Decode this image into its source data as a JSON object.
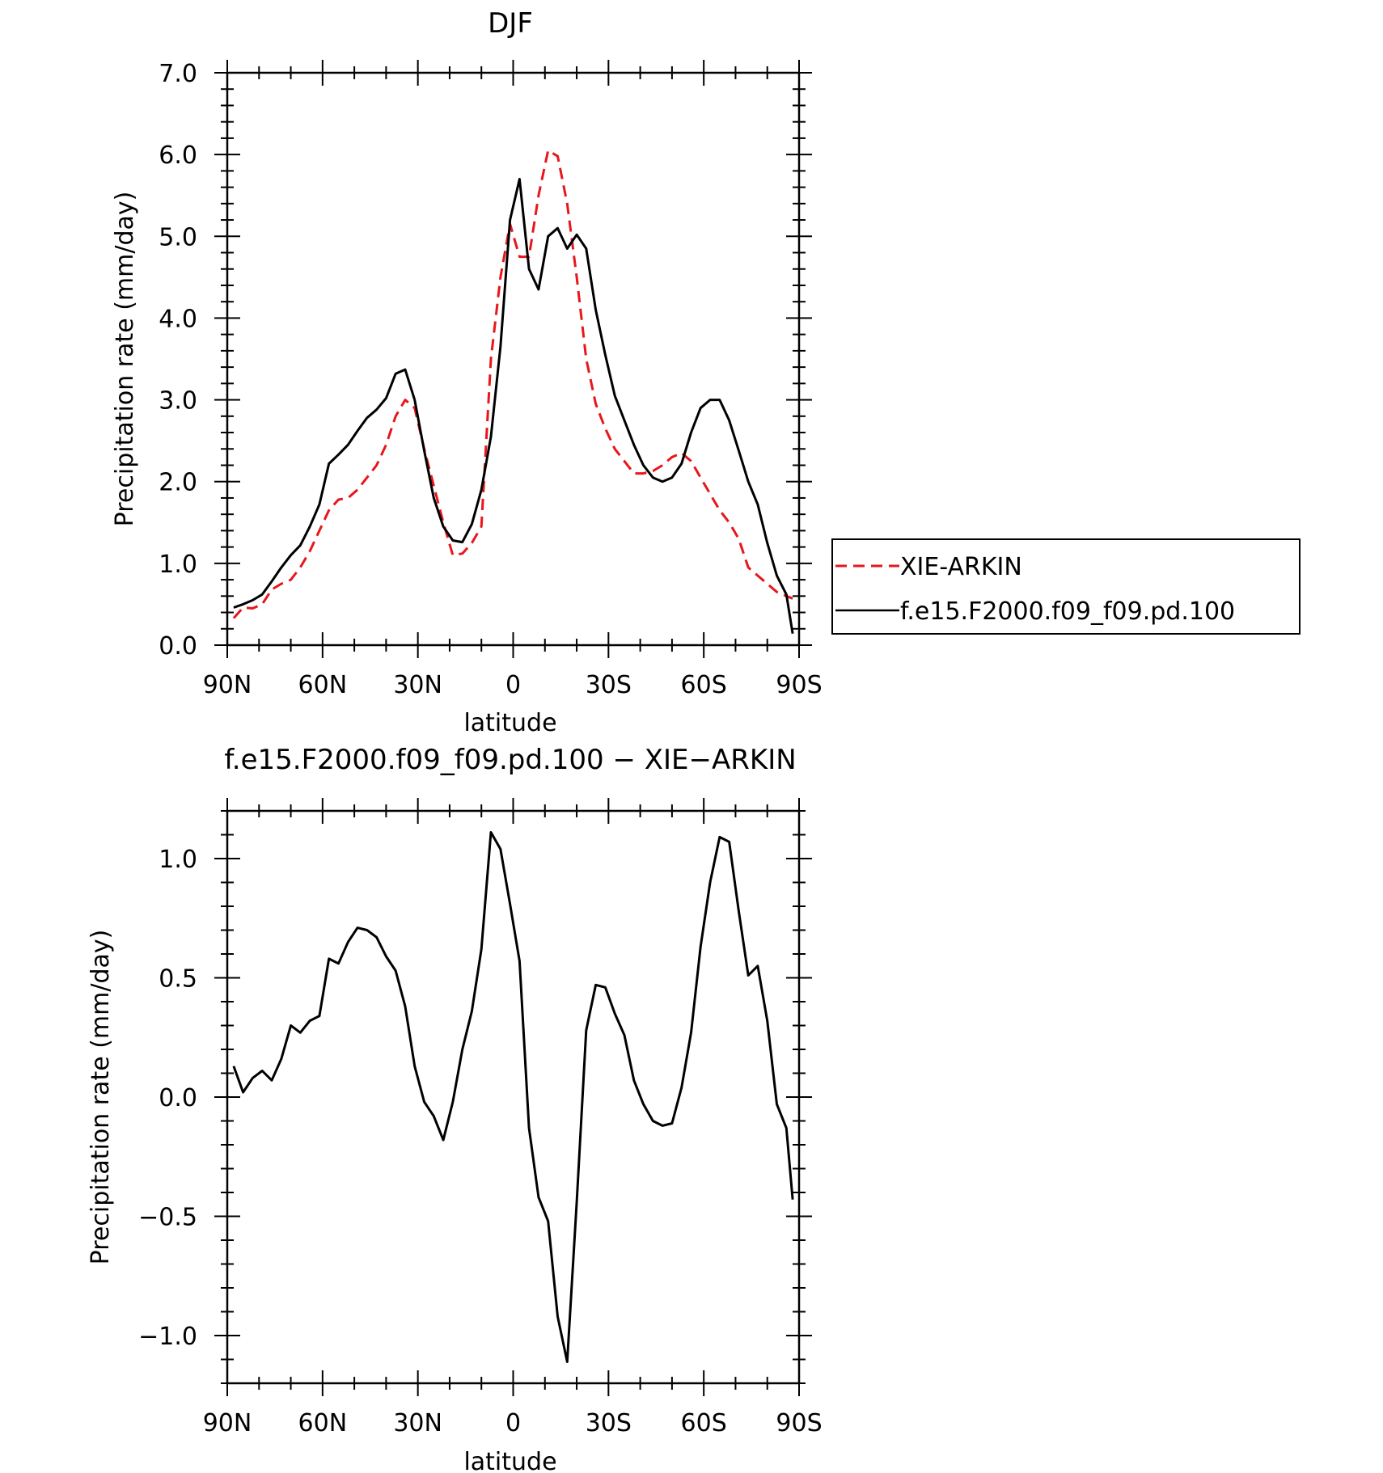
{
  "chart_data": [
    {
      "type": "line",
      "title": "DJF",
      "xlabel": "latitude",
      "ylabel": "Precipitation rate (mm/day)",
      "xlim": [
        90,
        -90
      ],
      "ylim": [
        0,
        7
      ],
      "x_ticks": [
        90,
        60,
        30,
        0,
        -30,
        -60,
        -90
      ],
      "x_tick_labels": [
        "90N",
        "60N",
        "30N",
        "0",
        "30S",
        "60S",
        "90S"
      ],
      "y_ticks": [
        0,
        1,
        2,
        3,
        4,
        5,
        6,
        7
      ],
      "y_tick_labels": [
        "0.0",
        "1.0",
        "2.0",
        "3.0",
        "4.0",
        "5.0",
        "6.0",
        "7.0"
      ],
      "legend_position": "right",
      "x": [
        88,
        85,
        82,
        79,
        76,
        73,
        70,
        67,
        64,
        61,
        58,
        55,
        52,
        49,
        46,
        43,
        40,
        37,
        34,
        31,
        28,
        25,
        22,
        19,
        16,
        13,
        10,
        7,
        4,
        1,
        -2,
        -5,
        -8,
        -11,
        -14,
        -17,
        -20,
        -23,
        -26,
        -29,
        -32,
        -35,
        -38,
        -41,
        -44,
        -47,
        -50,
        -53,
        -56,
        -59,
        -62,
        -65,
        -68,
        -71,
        -74,
        -77,
        -80,
        -83,
        -86,
        -88
      ],
      "series": [
        {
          "name": "XIE-ARKIN",
          "color": "#e8161b",
          "dash": true,
          "values": [
            0.33,
            0.46,
            0.45,
            0.5,
            0.68,
            0.75,
            0.8,
            0.95,
            1.15,
            1.4,
            1.65,
            1.78,
            1.8,
            1.9,
            2.05,
            2.2,
            2.45,
            2.8,
            3.0,
            2.9,
            2.4,
            1.95,
            1.5,
            1.1,
            1.12,
            1.25,
            1.45,
            3.5,
            4.5,
            5.15,
            4.75,
            4.75,
            5.5,
            6.05,
            5.98,
            5.4,
            4.5,
            3.5,
            2.95,
            2.65,
            2.4,
            2.25,
            2.1,
            2.1,
            2.13,
            2.2,
            2.3,
            2.35,
            2.25,
            2.05,
            1.85,
            1.65,
            1.5,
            1.3,
            0.95,
            0.85,
            0.75,
            0.65,
            0.6,
            0.57
          ]
        },
        {
          "name": "f.e15.F2000.f09_f09.pd.100",
          "color": "#000000",
          "dash": false,
          "values": [
            0.46,
            0.5,
            0.55,
            0.62,
            0.78,
            0.95,
            1.1,
            1.22,
            1.45,
            1.72,
            2.22,
            2.33,
            2.45,
            2.62,
            2.78,
            2.88,
            3.02,
            3.32,
            3.37,
            3.0,
            2.38,
            1.8,
            1.45,
            1.28,
            1.26,
            1.48,
            1.9,
            2.55,
            3.65,
            5.2,
            5.7,
            4.6,
            4.35,
            5.0,
            5.1,
            4.85,
            5.02,
            4.85,
            4.1,
            3.55,
            3.05,
            2.75,
            2.45,
            2.2,
            2.05,
            2.0,
            2.05,
            2.22,
            2.6,
            2.9,
            3.0,
            3.0,
            2.75,
            2.38,
            2.0,
            1.72,
            1.25,
            0.85,
            0.62,
            0.14
          ]
        }
      ]
    },
    {
      "type": "line",
      "title": "f.e15.F2000.f09_f09.pd.100 − XIE−ARKIN",
      "xlabel": "latitude",
      "ylabel": "Precipitation rate (mm/day)",
      "xlim": [
        90,
        -90
      ],
      "ylim": [
        -1.2,
        1.2
      ],
      "x_ticks": [
        90,
        60,
        30,
        0,
        -30,
        -60,
        -90
      ],
      "x_tick_labels": [
        "90N",
        "60N",
        "30N",
        "0",
        "30S",
        "60S",
        "90S"
      ],
      "y_ticks": [
        -1.0,
        -0.5,
        0.0,
        0.5,
        1.0
      ],
      "y_tick_labels": [
        "−1.0",
        "−0.5",
        "0.0",
        "0.5",
        "1.0"
      ],
      "x": [
        88,
        85,
        82,
        79,
        76,
        73,
        70,
        67,
        64,
        61,
        58,
        55,
        52,
        49,
        46,
        43,
        40,
        37,
        34,
        31,
        28,
        25,
        22,
        19,
        16,
        13,
        10,
        7,
        4,
        1,
        -2,
        -5,
        -8,
        -11,
        -14,
        -17,
        -20,
        -23,
        -26,
        -29,
        -32,
        -35,
        -38,
        -41,
        -44,
        -47,
        -50,
        -53,
        -56,
        -59,
        -62,
        -65,
        -68,
        -71,
        -74,
        -77,
        -80,
        -83,
        -86,
        -88
      ],
      "series": [
        {
          "color": "#000000",
          "dash": false,
          "values": [
            0.13,
            0.02,
            0.08,
            0.11,
            0.07,
            0.16,
            0.3,
            0.27,
            0.32,
            0.34,
            0.58,
            0.56,
            0.65,
            0.71,
            0.7,
            0.67,
            0.59,
            0.53,
            0.38,
            0.13,
            -0.02,
            -0.08,
            -0.18,
            -0.02,
            0.2,
            0.36,
            0.62,
            1.11,
            1.04,
            0.81,
            0.57,
            -0.13,
            -0.42,
            -0.52,
            -0.92,
            -1.11,
            -0.44,
            0.28,
            0.47,
            0.46,
            0.35,
            0.26,
            0.07,
            -0.03,
            -0.1,
            -0.12,
            -0.11,
            0.04,
            0.27,
            0.63,
            0.9,
            1.09,
            1.07,
            0.78,
            0.51,
            0.55,
            0.32,
            -0.03,
            -0.13,
            -0.43
          ]
        }
      ]
    }
  ]
}
